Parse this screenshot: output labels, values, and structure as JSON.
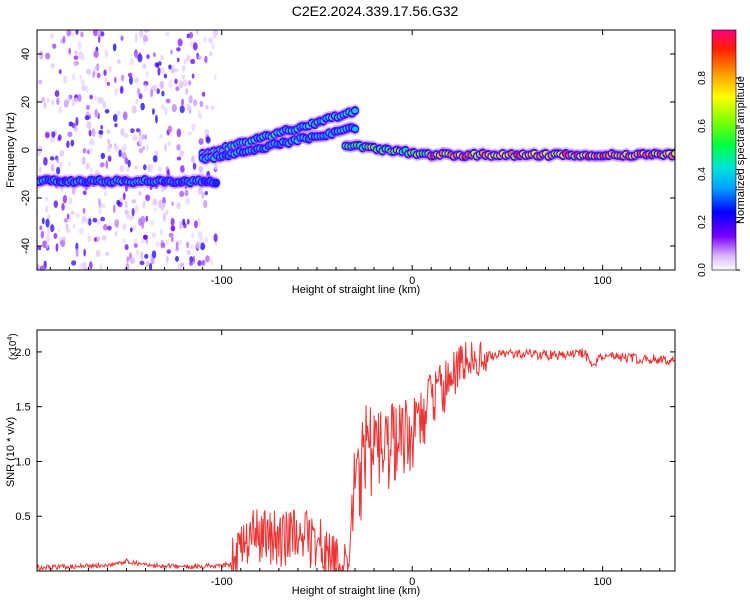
{
  "figure_title": "C2E2.2024.339.17.56.G32",
  "chart_data": [
    {
      "type": "heatmap",
      "xlabel": "Height of straight line (km)",
      "ylabel": "Frequency (Hz)",
      "xlim": [
        -197,
        138
      ],
      "ylim": [
        -50,
        50
      ],
      "x_ticks": [
        -100,
        0,
        100
      ],
      "x_tick_labels": [
        "-100",
        "0",
        "100"
      ],
      "y_ticks": [
        -40,
        -20,
        0,
        20,
        40
      ],
      "y_tick_labels": [
        "-40",
        "-20",
        "0",
        "20",
        "40"
      ],
      "colorbar": {
        "label": "Normalized spectral amplitude",
        "range": [
          0,
          1
        ],
        "ticks": [
          0.0,
          0.2,
          0.4,
          0.6,
          0.8
        ],
        "tick_labels": [
          "0.0",
          "0.2",
          "0.4",
          "0.6",
          "0.8"
        ]
      },
      "features": [
        {
          "x_range": [
            -197,
            -103
          ],
          "frequency_hz": -13,
          "amplitude_level": 0.35
        },
        {
          "x_range": [
            -110,
            -30
          ],
          "frequency_start_hz": -2,
          "frequency_end_hz": 16,
          "amplitude_level": 0.45
        },
        {
          "x_range": [
            -110,
            -30
          ],
          "frequency_start_hz": -4,
          "frequency_end_hz": 9,
          "amplitude_level": 0.4
        },
        {
          "x_range": [
            -35,
            10
          ],
          "frequency_start_hz": 2,
          "frequency_end_hz": -2,
          "amplitude_level": 0.6
        },
        {
          "x_range": [
            10,
            138
          ],
          "frequency_hz": -2,
          "amplitude_level": 0.85
        }
      ],
      "noise_region_x": [
        -197,
        -103
      ]
    },
    {
      "type": "line",
      "xlabel": "Height of straight line (km)",
      "ylabel": "SNR (10 * v/v)",
      "y_scale_label": "(x10",
      "y_scale_exponent": "4",
      "xlim": [
        -197,
        138
      ],
      "ylim": [
        0,
        22000
      ],
      "x_ticks": [
        -100,
        0,
        100
      ],
      "x_tick_labels": [
        "-100",
        "0",
        "100"
      ],
      "y_ticks": [
        5000,
        10000,
        15000,
        20000
      ],
      "y_tick_labels": [
        "0.5",
        "1.0",
        "1.5",
        "2.0"
      ],
      "series": [
        {
          "color": "#ee3333",
          "x": [
            -197,
            -180,
            -160,
            -150,
            -140,
            -120,
            -105,
            -95,
            -90,
            -85,
            -80,
            -75,
            -70,
            -65,
            -60,
            -55,
            -50,
            -45,
            -40,
            -35,
            -32,
            -30,
            -28,
            -25,
            -20,
            -15,
            -10,
            -5,
            0,
            5,
            10,
            15,
            20,
            25,
            30,
            40,
            50,
            60,
            70,
            80,
            90,
            95,
            100,
            110,
            120,
            130,
            138
          ],
          "y": [
            300,
            400,
            500,
            900,
            500,
            400,
            500,
            600,
            1500,
            2800,
            3300,
            3000,
            2800,
            3200,
            3400,
            3000,
            2600,
            1800,
            700,
            500,
            3500,
            10000,
            7000,
            11000,
            10500,
            11000,
            11500,
            12000,
            12500,
            14000,
            15500,
            16500,
            17500,
            18500,
            19200,
            19600,
            19800,
            19800,
            19700,
            19700,
            19900,
            18800,
            19600,
            19500,
            19400,
            19300,
            19200
          ]
        }
      ]
    }
  ]
}
